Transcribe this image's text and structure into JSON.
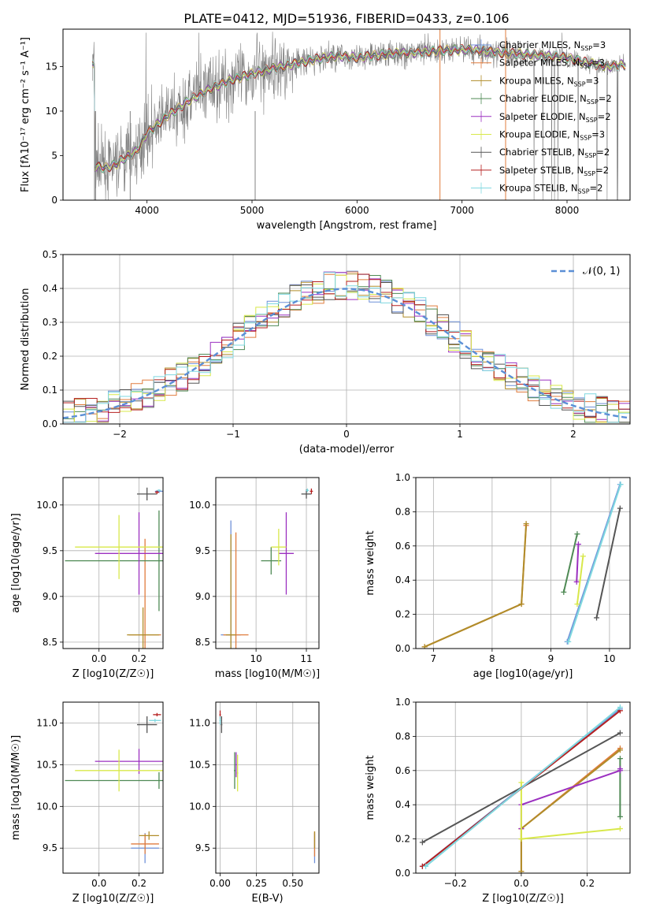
{
  "figure_title": "PLATE=0412, MJD=51936, FIBERID=0433, z=0.106",
  "colors": {
    "grid": "#b0b0b0",
    "data": "#808080",
    "normal_curve": "#5b8fd6"
  },
  "models": [
    {
      "name": "Chabrier MILES",
      "n": "3",
      "color": "#6f90d8"
    },
    {
      "name": "Salpeter MILES",
      "n": "3",
      "color": "#e07c3e"
    },
    {
      "name": "Kroupa MILES",
      "n": "3",
      "color": "#b08d2a"
    },
    {
      "name": "Chabrier ELODIE",
      "n": "2",
      "color": "#4f8a55"
    },
    {
      "name": "Salpeter ELODIE",
      "n": "2",
      "color": "#9b30c0"
    },
    {
      "name": "Kroupa ELODIE",
      "n": "3",
      "color": "#d8e84a"
    },
    {
      "name": "Chabrier STELIB",
      "n": "2",
      "color": "#555555"
    },
    {
      "name": "Salpeter STELIB",
      "n": "2",
      "color": "#b52020"
    },
    {
      "name": "Kroupa STELIB",
      "n": "2",
      "color": "#7fd8e0"
    }
  ],
  "chart_data": [
    {
      "id": "spectrum",
      "type": "line",
      "xlabel": "wavelength [Angstrom, rest frame]",
      "ylabel": "Flux [fλ10⁻¹⁷ erg cm⁻² s⁻¹ A⁻¹]",
      "xlim": [
        3200,
        8600
      ],
      "ylim": [
        0,
        19.2
      ],
      "xticks": [
        4000,
        5000,
        6000,
        7000,
        8000
      ],
      "yticks": [
        0,
        5,
        10,
        15
      ],
      "grid": false,
      "legend": "top-right",
      "continuum": {
        "x": [
          3500,
          3600,
          3700,
          3800,
          3900,
          4000,
          4100,
          4200,
          4300,
          4400,
          4500,
          4600,
          4700,
          4800,
          4900,
          5000,
          5200,
          5400,
          5600,
          5800,
          6000,
          6200,
          6400,
          6600,
          6800,
          7000,
          7200,
          7400,
          7600,
          7800,
          8000,
          8200,
          8400,
          8500
        ],
        "y": [
          3.8,
          3.6,
          4.0,
          4.8,
          5.5,
          7.5,
          8.5,
          9.5,
          10.3,
          11.2,
          11.8,
          12.5,
          13.0,
          13.5,
          13.8,
          14.2,
          14.8,
          15.3,
          15.8,
          16.2,
          16.0,
          16.3,
          16.5,
          16.6,
          16.8,
          16.9,
          16.8,
          16.5,
          16.4,
          16.2,
          16.0,
          15.4,
          15.0,
          15.2
        ]
      }
    },
    {
      "id": "residuals",
      "type": "step",
      "xlabel": "(data-model)/error",
      "ylabel": "Normed distribution",
      "xlim": [
        -2.5,
        2.5
      ],
      "ylim": [
        0,
        0.5
      ],
      "xticks": [
        -2,
        -1,
        0,
        1,
        2
      ],
      "yticks": [
        0.0,
        0.1,
        0.2,
        0.3,
        0.4,
        0.5
      ],
      "grid": true,
      "legend": "top-right",
      "normal_label": "𝒩(0, 1)"
    },
    {
      "id": "age_vs_Z",
      "type": "errorbar",
      "xlabel": "Z [log10(Z/Z☉)]",
      "ylabel": "age  [log10(age/yr)]",
      "xlim": [
        -0.18,
        0.32
      ],
      "ylim": [
        8.43,
        10.3
      ],
      "xticks": [
        0.0,
        0.2
      ],
      "yticks": [
        8.5,
        9.0,
        9.5,
        10.0
      ],
      "points": [
        {
          "m": 0,
          "x": 0.3,
          "y": 10.15,
          "ex": 0.02,
          "ey": 0.02
        },
        {
          "m": 1,
          "x": 0.23,
          "y": 8.58,
          "ex": 0.08,
          "ey": 1.05
        },
        {
          "m": 2,
          "x": 0.22,
          "y": 8.58,
          "ex": 0.08,
          "ey": 0.3
        },
        {
          "m": 3,
          "x": 0.3,
          "y": 9.39,
          "ex": 0.47,
          "ey": 0.55
        },
        {
          "m": 4,
          "x": 0.2,
          "y": 9.47,
          "ex": 0.22,
          "ey": 0.45
        },
        {
          "m": 5,
          "x": 0.1,
          "y": 9.54,
          "ex": 0.22,
          "ey": 0.35
        },
        {
          "m": 6,
          "x": 0.24,
          "y": 10.12,
          "ex": 0.05,
          "ey": 0.07
        },
        {
          "m": 7,
          "x": 0.29,
          "y": 10.14,
          "ex": 0.01,
          "ey": 0.02
        },
        {
          "m": 8,
          "x": 0.3,
          "y": 10.16,
          "ex": 0.01,
          "ey": 0.01
        }
      ]
    },
    {
      "id": "age_vs_mass",
      "type": "errorbar",
      "xlabel": "mass [log10(M/M☉)]",
      "xlim": [
        9.2,
        11.25
      ],
      "ylim": [
        8.43,
        10.3
      ],
      "xticks": [
        10,
        11
      ],
      "yticks": [
        8.5,
        9.0,
        9.5,
        10.0
      ],
      "points": [
        {
          "m": 0,
          "x": 9.5,
          "y": 8.58,
          "ex": 0.2,
          "ey": 1.25
        },
        {
          "m": 1,
          "x": 9.6,
          "y": 8.58,
          "ex": 0.25,
          "ey": 1.12
        },
        {
          "m": 2,
          "x": 9.5,
          "y": 8.58,
          "ex": 0.1,
          "ey": 1.1
        },
        {
          "m": 3,
          "x": 10.3,
          "y": 9.39,
          "ex": 0.2,
          "ey": 0.15
        },
        {
          "m": 4,
          "x": 10.6,
          "y": 9.47,
          "ex": 0.15,
          "ey": 0.45
        },
        {
          "m": 5,
          "x": 10.45,
          "y": 9.54,
          "ex": 0.15,
          "ey": 0.2
        },
        {
          "m": 6,
          "x": 11.0,
          "y": 10.12,
          "ex": 0.1,
          "ey": 0.05
        },
        {
          "m": 7,
          "x": 11.1,
          "y": 10.15,
          "ex": 0.03,
          "ey": 0.03
        },
        {
          "m": 8,
          "x": 11.02,
          "y": 10.16,
          "ex": 0.03,
          "ey": 0.02
        }
      ]
    },
    {
      "id": "weight_vs_age",
      "type": "line",
      "xlabel": "age  [log10(age/yr)]",
      "ylabel": "mass weight",
      "xlim": [
        6.7,
        10.35
      ],
      "ylim": [
        0,
        1
      ],
      "xticks": [
        7,
        8,
        9,
        10
      ],
      "yticks": [
        0.0,
        0.2,
        0.4,
        0.6,
        0.8,
        1.0
      ],
      "series": [
        {
          "m": 0,
          "x": [
            9.28,
            10.18
          ],
          "y": [
            0.04,
            0.96
          ]
        },
        {
          "m": 1,
          "x": [
            6.85,
            8.5,
            8.58
          ],
          "y": [
            0.01,
            0.26,
            0.72
          ]
        },
        {
          "m": 2,
          "x": [
            6.85,
            8.5,
            8.58
          ],
          "y": [
            0.01,
            0.26,
            0.73
          ]
        },
        {
          "m": 3,
          "x": [
            9.22,
            9.45
          ],
          "y": [
            0.33,
            0.67
          ]
        },
        {
          "m": 4,
          "x": [
            9.44,
            9.47
          ],
          "y": [
            0.39,
            0.61
          ]
        },
        {
          "m": 5,
          "x": [
            9.45,
            9.55
          ],
          "y": [
            0.26,
            0.54
          ]
        },
        {
          "m": 6,
          "x": [
            9.78,
            10.18
          ],
          "y": [
            0.18,
            0.82
          ]
        },
        {
          "m": 8,
          "x": [
            9.3,
            10.19
          ],
          "y": [
            0.04,
            0.96
          ]
        }
      ]
    },
    {
      "id": "mass_vs_Z",
      "type": "errorbar",
      "xlabel": "Z [log10(Z/Z☉)]",
      "ylabel": "mass [log10(M/M☉)]",
      "xlim": [
        -0.18,
        0.32
      ],
      "ylim": [
        9.2,
        11.25
      ],
      "xticks": [
        0.0,
        0.2
      ],
      "yticks": [
        9.5,
        10.0,
        10.5,
        11.0
      ],
      "points": [
        {
          "m": 0,
          "x": 0.23,
          "y": 9.5,
          "ex": 0.07,
          "ey": 0.18
        },
        {
          "m": 1,
          "x": 0.23,
          "y": 9.55,
          "ex": 0.07,
          "ey": 0.12
        },
        {
          "m": 2,
          "x": 0.25,
          "y": 9.65,
          "ex": 0.05,
          "ey": 0.05
        },
        {
          "m": 3,
          "x": 0.3,
          "y": 10.31,
          "ex": 0.47,
          "ey": 0.1
        },
        {
          "m": 4,
          "x": 0.2,
          "y": 10.54,
          "ex": 0.22,
          "ey": 0.15
        },
        {
          "m": 5,
          "x": 0.1,
          "y": 10.43,
          "ex": 0.22,
          "ey": 0.25
        },
        {
          "m": 6,
          "x": 0.24,
          "y": 10.98,
          "ex": 0.05,
          "ey": 0.1
        },
        {
          "m": 7,
          "x": 0.29,
          "y": 11.1,
          "ex": 0.02,
          "ey": 0.02
        },
        {
          "m": 8,
          "x": 0.28,
          "y": 11.03,
          "ex": 0.03,
          "ey": 0.02
        }
      ]
    },
    {
      "id": "mass_vs_ebv",
      "type": "errorbar",
      "xlabel": "E(B-V)",
      "xlim": [
        -0.03,
        0.68
      ],
      "ylim": [
        9.2,
        11.25
      ],
      "xticks": [
        0.0,
        0.25,
        0.5
      ],
      "yticks": [
        9.5,
        10.0,
        10.5,
        11.0
      ],
      "points": [
        {
          "m": 0,
          "x": 0.65,
          "y": 9.5,
          "ex": 0.0,
          "ey": 0.18
        },
        {
          "m": 1,
          "x": 0.65,
          "y": 9.55,
          "ex": 0.0,
          "ey": 0.15
        },
        {
          "m": 2,
          "x": 0.65,
          "y": 9.6,
          "ex": 0.0,
          "ey": 0.1
        },
        {
          "m": 3,
          "x": 0.1,
          "y": 10.43,
          "ex": 0.005,
          "ey": 0.22
        },
        {
          "m": 4,
          "x": 0.11,
          "y": 10.5,
          "ex": 0.005,
          "ey": 0.15
        },
        {
          "m": 5,
          "x": 0.12,
          "y": 10.4,
          "ex": 0.005,
          "ey": 0.22
        },
        {
          "m": 6,
          "x": 0.01,
          "y": 10.98,
          "ex": 0.005,
          "ey": 0.1
        },
        {
          "m": 7,
          "x": 0.0,
          "y": 11.1,
          "ex": 0.005,
          "ey": 0.05
        },
        {
          "m": 8,
          "x": 0.0,
          "y": 11.03,
          "ex": 0.005,
          "ey": 0.05
        }
      ]
    },
    {
      "id": "weight_vs_Z",
      "type": "line",
      "xlabel": "Z [log10(Z/Z☉)]",
      "ylabel": "mass weight",
      "xlim": [
        -0.32,
        0.33
      ],
      "ylim": [
        0,
        1
      ],
      "xticks": [
        -0.2,
        0.0,
        0.2
      ],
      "yticks": [
        0.0,
        0.2,
        0.4,
        0.6,
        0.8,
        1.0
      ],
      "series": [
        {
          "m": 0,
          "x": [
            -0.3,
            0.3
          ],
          "y": [
            0.04,
            0.96
          ]
        },
        {
          "m": 1,
          "x": [
            0.0,
            0.0,
            0.3
          ],
          "y": [
            0.01,
            0.26,
            0.73
          ]
        },
        {
          "m": 2,
          "x": [
            0.0,
            0.0,
            0.3
          ],
          "y": [
            0.01,
            0.26,
            0.72
          ]
        },
        {
          "m": 3,
          "x": [
            0.3,
            0.3
          ],
          "y": [
            0.33,
            0.67
          ]
        },
        {
          "m": 4,
          "x": [
            0.0,
            0.0,
            0.3,
            0.3
          ],
          "y": [
            0.26,
            0.4,
            0.6,
            0.61
          ]
        },
        {
          "m": 5,
          "x": [
            0.0,
            0.0,
            0.3
          ],
          "y": [
            0.53,
            0.2,
            0.26
          ]
        },
        {
          "m": 6,
          "x": [
            -0.3,
            0.3
          ],
          "y": [
            0.18,
            0.82
          ]
        },
        {
          "m": 7,
          "x": [
            -0.3,
            0.3
          ],
          "y": [
            0.04,
            0.95
          ]
        },
        {
          "m": 8,
          "x": [
            -0.29,
            0.3
          ],
          "y": [
            0.04,
            0.97
          ]
        }
      ]
    }
  ]
}
